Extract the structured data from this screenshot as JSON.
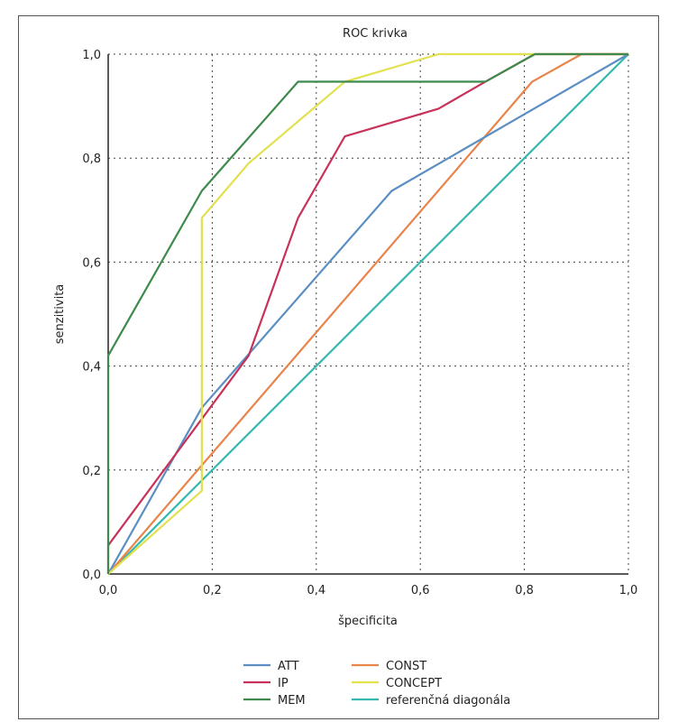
{
  "chart_data": {
    "type": "line",
    "title": "ROC krivka",
    "xlabel": "špecificita",
    "ylabel": "senzitivita",
    "xlim": [
      0,
      1
    ],
    "ylim": [
      0,
      1
    ],
    "grid": true,
    "legend_position": "bottom",
    "x_ticks": [
      "0,0",
      "0,2",
      "0,4",
      "0,6",
      "0,8",
      "1,0"
    ],
    "y_ticks": [
      "0,0",
      "0,2",
      "0,4",
      "0,6",
      "0,8",
      "1,0"
    ],
    "series": [
      {
        "name": "ATT",
        "color": "#5b8fc4",
        "x": [
          0,
          0.18,
          0.545,
          1.0
        ],
        "y": [
          0,
          0.32,
          0.737,
          1.0
        ]
      },
      {
        "name": "IP",
        "color": "#c8325a",
        "x": [
          0,
          0,
          0.27,
          0.365,
          0.455,
          0.635,
          0.725,
          0.82,
          1.0
        ],
        "y": [
          0,
          0.055,
          0.42,
          0.685,
          0.842,
          0.895,
          0.947,
          1.0,
          1.0
        ]
      },
      {
        "name": "MEM",
        "color": "#3e8a4c",
        "x": [
          0,
          0,
          0.18,
          0.365,
          0.725,
          0.82,
          1.0
        ],
        "y": [
          0,
          0.42,
          0.737,
          0.947,
          0.947,
          1.0,
          1.0
        ]
      },
      {
        "name": "CONST",
        "color": "#e8834a",
        "x": [
          0,
          0.815,
          0.91,
          1.0
        ],
        "y": [
          0,
          0.947,
          1.0,
          1.0
        ]
      },
      {
        "name": "CONCEPT",
        "color": "#e3e04e",
        "x": [
          0,
          0.18,
          0.18,
          0.27,
          0.455,
          0.635,
          1.0
        ],
        "y": [
          0,
          0.16,
          0.685,
          0.79,
          0.947,
          1.0,
          1.0
        ]
      },
      {
        "name": "referenčná diagonála",
        "color": "#34b8b0",
        "x": [
          0,
          1.0
        ],
        "y": [
          0,
          1.0
        ]
      }
    ]
  }
}
